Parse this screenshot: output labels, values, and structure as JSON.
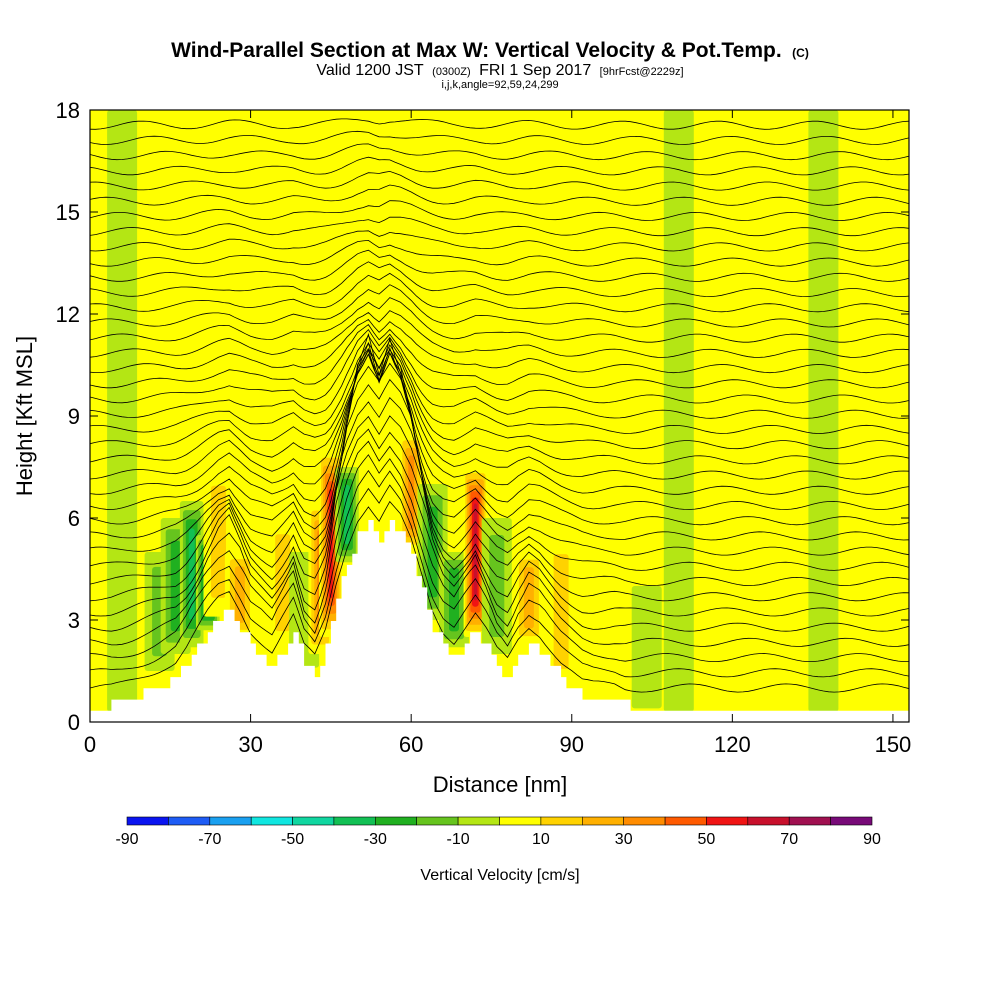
{
  "header": {
    "title": "Wind-Parallel Section at Max W: Vertical Velocity & Pot.Temp.",
    "title_suffix": "(C)",
    "valid_prefix": "Valid 1200 JST",
    "valid_utc": "(0300Z)",
    "valid_date": "FRI 1 Sep 2017",
    "forecast_tag": "[9hrFcst@2229z]",
    "indices": "i,j,k,angle=92,59,24,299"
  },
  "chart_data": {
    "type": "heatmap",
    "title": "Wind-Parallel Section at Max W: Vertical Velocity & Pot.Temp.",
    "xlabel": "Distance [nm]",
    "ylabel": "Height [Kft MSL]",
    "xlim": [
      0,
      153
    ],
    "ylim": [
      0,
      18
    ],
    "x_ticks": [
      0,
      30,
      60,
      90,
      120,
      150
    ],
    "y_ticks": [
      0,
      3,
      6,
      9,
      12,
      15,
      18
    ],
    "colorbar": {
      "label": "Vertical Velocity [cm/s]",
      "levels": [
        -90,
        -80,
        -70,
        -60,
        -50,
        -40,
        -30,
        -20,
        -10,
        0,
        10,
        20,
        30,
        40,
        50,
        60,
        70,
        80,
        90
      ],
      "tick_labels": [
        "-90",
        "-70",
        "-50",
        "-30",
        "-10",
        "10",
        "30",
        "50",
        "70",
        "90"
      ],
      "colors": [
        "#0a14f0",
        "#1e5cf5",
        "#1aa0f0",
        "#10e6e0",
        "#10d6a0",
        "#12c054",
        "#20b020",
        "#66c41e",
        "#b4e614",
        "#ffff00",
        "#ffd200",
        "#ffb000",
        "#ff8c00",
        "#ff5a00",
        "#f01414",
        "#c8102c",
        "#a01050",
        "#780a78"
      ]
    },
    "terrain": {
      "description_units": "x in nm, height in Kft MSL",
      "x": [
        0,
        6,
        12,
        16,
        18,
        20,
        22,
        24,
        26,
        28,
        30,
        32,
        34,
        36,
        38,
        40,
        42,
        44,
        46,
        48,
        50,
        52,
        54,
        56,
        58,
        60,
        62,
        64,
        66,
        68,
        70,
        72,
        74,
        76,
        78,
        80,
        82,
        84,
        86,
        88,
        90,
        92,
        94,
        96,
        98,
        100,
        102,
        104,
        153
      ],
      "height": [
        0.3,
        0.6,
        1.0,
        1.3,
        1.7,
        2.2,
        2.7,
        3.1,
        3.3,
        2.8,
        2.2,
        1.9,
        1.6,
        2.1,
        2.6,
        1.7,
        1.4,
        2.2,
        3.6,
        4.7,
        5.5,
        5.9,
        5.4,
        5.9,
        5.5,
        4.8,
        3.8,
        2.8,
        2.2,
        1.9,
        2.3,
        2.7,
        2.2,
        1.6,
        1.3,
        1.9,
        2.3,
        2.1,
        1.7,
        1.3,
        1.0,
        0.7,
        0.6,
        0.6,
        0.6,
        0.5,
        0.4,
        0.3,
        0.3
      ]
    },
    "vertical_velocity_features": [
      {
        "x": 6,
        "z0": 0.3,
        "z1": 18,
        "w": -8
      },
      {
        "x": 13,
        "z0": 1.5,
        "z1": 5,
        "w": -25
      },
      {
        "x": 16,
        "z0": 2,
        "z1": 6,
        "w": -35
      },
      {
        "x": 19,
        "z0": 2.2,
        "z1": 6.5,
        "w": -45
      },
      {
        "x": 22,
        "z0": 2.7,
        "z1": 5.5,
        "w": -55
      },
      {
        "x": 24,
        "z0": 3.1,
        "z1": 7.5,
        "w": 25
      },
      {
        "x": 28,
        "z0": 2.5,
        "z1": 5,
        "w": 30
      },
      {
        "x": 36,
        "z0": 2.2,
        "z1": 6,
        "w": 25
      },
      {
        "x": 40,
        "z0": 1.6,
        "z1": 5,
        "w": -15
      },
      {
        "x": 43,
        "z0": 2,
        "z1": 6.5,
        "w": 45
      },
      {
        "x": 45,
        "z0": 2.5,
        "z1": 8,
        "w": 65
      },
      {
        "x": 48,
        "z0": 4.7,
        "z1": 7.5,
        "w": -45
      },
      {
        "x": 60,
        "z0": 5,
        "z1": 8.5,
        "w": 45
      },
      {
        "x": 64,
        "z0": 3,
        "z1": 7,
        "w": -35
      },
      {
        "x": 68,
        "z0": 2.2,
        "z1": 5,
        "w": -30
      },
      {
        "x": 72,
        "z0": 2.5,
        "z1": 7.5,
        "w": 70
      },
      {
        "x": 76,
        "z0": 2,
        "z1": 6,
        "w": -25
      },
      {
        "x": 82,
        "z0": 2.3,
        "z1": 5,
        "w": 30
      },
      {
        "x": 88,
        "z0": 1,
        "z1": 5.5,
        "w": 20
      },
      {
        "x": 104,
        "z0": 0.4,
        "z1": 4,
        "w": -10
      },
      {
        "x": 110,
        "z0": 0.3,
        "z1": 18,
        "w": -8
      },
      {
        "x": 128,
        "z0": 0.3,
        "z1": 4,
        "w": 15
      },
      {
        "x": 137,
        "z0": 0.3,
        "z1": 18,
        "w": -8
      },
      {
        "x": 146,
        "z0": 0.3,
        "z1": 18,
        "w": 12
      }
    ],
    "potential_temperature_contours": {
      "levels_approx_count": 38,
      "spacing_kft_upper": 0.45,
      "spacing_kft_lower": 1.1
    }
  }
}
